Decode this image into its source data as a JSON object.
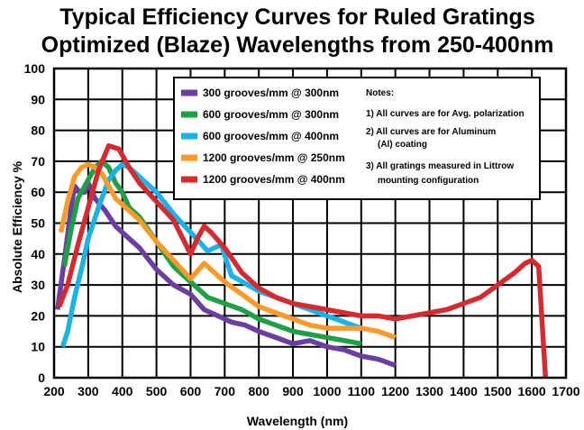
{
  "chart_data": {
    "type": "line",
    "title_line1": "Typical Efficiency Curves  for Ruled Gratings",
    "title_line2": "Optimized (Blaze) Wavelengths from 250-400nm",
    "xlabel": "Wavelength (nm)",
    "ylabel": "Absolute Efficiency %",
    "xlim": [
      200,
      1700
    ],
    "ylim": [
      0,
      100
    ],
    "xticks": [
      "200",
      "300",
      "400",
      "500",
      "600",
      "700",
      "800",
      "900",
      "1000",
      "1100",
      "1200",
      "1300",
      "1400",
      "1500",
      "1600",
      "1700"
    ],
    "yticks": [
      "0",
      "10",
      "20",
      "30",
      "40",
      "50",
      "60",
      "70",
      "80",
      "90",
      "100"
    ],
    "grid": true,
    "legend_position": "top-right",
    "series": [
      {
        "name": "300 grooves/mm  @ 300nm",
        "color": "#6b3fa0",
        "points": [
          [
            210,
            22
          ],
          [
            230,
            38
          ],
          [
            250,
            55
          ],
          [
            260,
            62
          ],
          [
            275,
            60
          ],
          [
            290,
            60
          ],
          [
            300,
            63
          ],
          [
            320,
            58
          ],
          [
            350,
            54
          ],
          [
            380,
            49
          ],
          [
            400,
            47
          ],
          [
            450,
            42
          ],
          [
            500,
            35
          ],
          [
            550,
            30
          ],
          [
            600,
            27
          ],
          [
            640,
            22
          ],
          [
            680,
            20
          ],
          [
            720,
            18
          ],
          [
            760,
            17
          ],
          [
            800,
            15
          ],
          [
            850,
            13
          ],
          [
            900,
            11
          ],
          [
            950,
            12
          ],
          [
            1000,
            10
          ],
          [
            1050,
            9
          ],
          [
            1100,
            7
          ],
          [
            1150,
            6
          ],
          [
            1200,
            4
          ]
        ]
      },
      {
        "name": "600 grooves/mm  @ 300nm",
        "color": "#1da046",
        "points": [
          [
            230,
            36
          ],
          [
            250,
            48
          ],
          [
            270,
            58
          ],
          [
            300,
            64
          ],
          [
            320,
            68
          ],
          [
            340,
            70
          ],
          [
            360,
            68
          ],
          [
            380,
            63
          ],
          [
            400,
            60
          ],
          [
            420,
            55
          ],
          [
            450,
            52
          ],
          [
            500,
            44
          ],
          [
            550,
            36
          ],
          [
            600,
            31
          ],
          [
            650,
            26
          ],
          [
            700,
            24
          ],
          [
            750,
            22
          ],
          [
            800,
            19
          ],
          [
            850,
            17
          ],
          [
            900,
            15
          ],
          [
            950,
            14
          ],
          [
            1000,
            13
          ],
          [
            1050,
            12
          ],
          [
            1100,
            11
          ]
        ]
      },
      {
        "name": "600 grooves/mm  @ 400nm",
        "color": "#1ab3e8",
        "points": [
          [
            225,
            10
          ],
          [
            240,
            15
          ],
          [
            260,
            26
          ],
          [
            280,
            35
          ],
          [
            300,
            45
          ],
          [
            330,
            55
          ],
          [
            360,
            64
          ],
          [
            380,
            67
          ],
          [
            400,
            69
          ],
          [
            420,
            68
          ],
          [
            450,
            65
          ],
          [
            500,
            60
          ],
          [
            550,
            53
          ],
          [
            600,
            47
          ],
          [
            650,
            41
          ],
          [
            690,
            43
          ],
          [
            720,
            33
          ],
          [
            800,
            28
          ],
          [
            850,
            26
          ],
          [
            900,
            24
          ],
          [
            950,
            22
          ],
          [
            1000,
            20
          ],
          [
            1050,
            18
          ],
          [
            1100,
            16
          ]
        ]
      },
      {
        "name": "1200 grooves/mm  @ 250nm",
        "color": "#f99a2a",
        "points": [
          [
            220,
            47
          ],
          [
            240,
            57
          ],
          [
            260,
            65
          ],
          [
            280,
            68
          ],
          [
            300,
            69
          ],
          [
            320,
            68
          ],
          [
            340,
            66
          ],
          [
            360,
            62
          ],
          [
            380,
            58
          ],
          [
            400,
            56
          ],
          [
            450,
            51
          ],
          [
            500,
            44
          ],
          [
            550,
            38
          ],
          [
            600,
            32
          ],
          [
            640,
            37
          ],
          [
            700,
            31
          ],
          [
            750,
            27
          ],
          [
            800,
            23
          ],
          [
            850,
            21
          ],
          [
            900,
            19
          ],
          [
            950,
            17
          ],
          [
            1000,
            16
          ],
          [
            1050,
            16
          ],
          [
            1100,
            16
          ],
          [
            1150,
            15
          ],
          [
            1200,
            13
          ]
        ]
      },
      {
        "name": "1200 grooves/mm  @ 400nm",
        "color": "#d62a31",
        "points": [
          [
            215,
            23
          ],
          [
            240,
            30
          ],
          [
            270,
            43
          ],
          [
            300,
            55
          ],
          [
            330,
            67
          ],
          [
            360,
            75
          ],
          [
            390,
            74
          ],
          [
            420,
            68
          ],
          [
            450,
            63
          ],
          [
            500,
            57
          ],
          [
            550,
            51
          ],
          [
            600,
            40
          ],
          [
            620,
            45
          ],
          [
            640,
            49
          ],
          [
            660,
            47
          ],
          [
            700,
            42
          ],
          [
            750,
            34
          ],
          [
            800,
            29
          ],
          [
            850,
            26
          ],
          [
            900,
            24
          ],
          [
            950,
            23
          ],
          [
            1000,
            22
          ],
          [
            1050,
            21
          ],
          [
            1100,
            20
          ],
          [
            1150,
            20
          ],
          [
            1200,
            19
          ],
          [
            1250,
            20
          ],
          [
            1300,
            21
          ],
          [
            1350,
            22
          ],
          [
            1400,
            24
          ],
          [
            1450,
            26
          ],
          [
            1500,
            30
          ],
          [
            1550,
            34
          ],
          [
            1580,
            37
          ],
          [
            1600,
            38
          ],
          [
            1620,
            36
          ],
          [
            1640,
            0
          ]
        ]
      }
    ],
    "notes": [
      "Notes:",
      "1) All curves are for Avg. polarization",
      "2) All curves are for Aluminum",
      "(Al) coating",
      "3) All gratings measured in Littrow",
      "mounting configuration"
    ]
  }
}
